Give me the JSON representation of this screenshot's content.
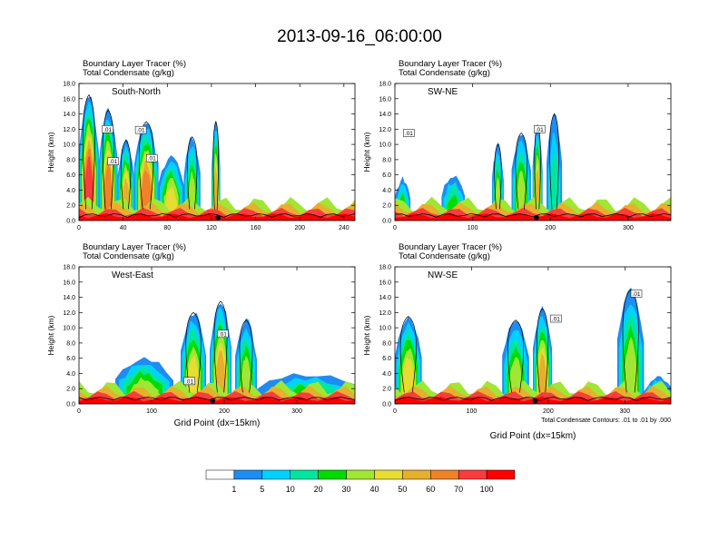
{
  "title": "2013-09-16_06:00:00",
  "fill_label": "Boundary Layer Tracer   (%)",
  "contour_label": "Total Condensate   (g/kg)",
  "ylabel": "Height (km)",
  "xlabel": "Grid Point (dx=15km)",
  "contour_note": "Total Condensate Contours: .01 to .01 by .000",
  "colors": {
    "palette": [
      "#ffffff",
      "#1e8cf0",
      "#00d2ff",
      "#00e6a0",
      "#00dc00",
      "#a0e632",
      "#e6dc32",
      "#e6af2d",
      "#f08228",
      "#fa3c3c",
      "#ff0000"
    ],
    "contour": "#000000",
    "marker": "#000000"
  },
  "colorbar": {
    "labels": [
      "1",
      "5",
      "10",
      "20",
      "30",
      "40",
      "50",
      "60",
      "70",
      "100"
    ]
  },
  "chart_data": [
    {
      "type": "heatmap",
      "panel_label": "South-North",
      "xlim": [
        0,
        250
      ],
      "ylim": [
        0,
        18
      ],
      "x_ticks": [
        "0",
        "40",
        "80",
        "120",
        "160",
        "200",
        "240"
      ],
      "y_ticks": [
        "0.0",
        "2.0",
        "4.0",
        "6.0",
        "8.0",
        "10.0",
        "12.0",
        "14.0",
        "16.0",
        "18.0"
      ],
      "contour_labels": [
        {
          "text": ".01",
          "x": 26,
          "y": 12.0
        },
        {
          "text": ".01",
          "x": 56,
          "y": 11.9
        },
        {
          "text": ".01",
          "x": 31,
          "y": 7.8
        },
        {
          "text": ".01",
          "x": 66,
          "y": 8.2
        }
      ],
      "plumes": [
        {
          "x0": 0,
          "x1": 18,
          "top": 16.5,
          "v": 9
        },
        {
          "x0": 18,
          "x1": 35,
          "top": 14.5,
          "v": 8
        },
        {
          "x0": 35,
          "x1": 50,
          "top": 10.5,
          "v": 7
        },
        {
          "x0": 50,
          "x1": 72,
          "top": 13.0,
          "v": 8
        },
        {
          "x0": 72,
          "x1": 95,
          "top": 8.5,
          "v": 6
        },
        {
          "x0": 95,
          "x1": 110,
          "top": 11.0,
          "v": 5
        },
        {
          "x0": 120,
          "x1": 128,
          "top": 13.0,
          "v": 7
        }
      ],
      "marker_x": 126
    },
    {
      "type": "heatmap",
      "panel_label": "SW-NE",
      "xlim": [
        0,
        355
      ],
      "ylim": [
        0,
        18
      ],
      "x_ticks": [
        "0",
        "100",
        "200",
        "300"
      ],
      "y_ticks": [
        "0.0",
        "2.0",
        "4.0",
        "6.0",
        "8.0",
        "10.0",
        "12.0",
        "14.0",
        "16.0",
        "18.0"
      ],
      "contour_labels": [
        {
          "text": ".01",
          "x": 18,
          "y": 11.5
        },
        {
          "text": ".01",
          "x": 186,
          "y": 12.0
        }
      ],
      "plumes": [
        {
          "x0": 0,
          "x1": 20,
          "top": 5.5,
          "v": 4
        },
        {
          "x0": 60,
          "x1": 90,
          "top": 6.0,
          "v": 4
        },
        {
          "x0": 125,
          "x1": 140,
          "top": 10.0,
          "v": 5
        },
        {
          "x0": 150,
          "x1": 175,
          "top": 11.5,
          "v": 5
        },
        {
          "x0": 177,
          "x1": 190,
          "top": 12.5,
          "v": 7
        },
        {
          "x0": 195,
          "x1": 215,
          "top": 14.0,
          "v": 3
        }
      ],
      "marker_x": 182
    },
    {
      "type": "heatmap",
      "panel_label": "West-East",
      "xlim": [
        0,
        380
      ],
      "ylim": [
        0,
        18
      ],
      "x_ticks": [
        "0",
        "100",
        "200",
        "300"
      ],
      "y_ticks": [
        "0.0",
        "2.0",
        "4.0",
        "6.0",
        "8.0",
        "10.0",
        "12.0",
        "14.0",
        "16.0",
        "18.0"
      ],
      "contour_labels": [
        {
          "text": ".01",
          "x": 152,
          "y": 3.0
        },
        {
          "text": ".01",
          "x": 198,
          "y": 9.2
        }
      ],
      "plumes": [
        {
          "x0": 50,
          "x1": 130,
          "top": 6.0,
          "v": 5
        },
        {
          "x0": 140,
          "x1": 175,
          "top": 12.0,
          "v": 6
        },
        {
          "x0": 180,
          "x1": 210,
          "top": 13.5,
          "v": 7
        },
        {
          "x0": 215,
          "x1": 245,
          "top": 11.0,
          "v": 5
        },
        {
          "x0": 245,
          "x1": 380,
          "top": 4.0,
          "v": 4
        }
      ],
      "marker_x": 184
    },
    {
      "type": "heatmap",
      "panel_label": "NW-SE",
      "xlim": [
        0,
        360
      ],
      "ylim": [
        0,
        18
      ],
      "x_ticks": [
        "0",
        "100",
        "200",
        "300"
      ],
      "y_ticks": [
        "0.0",
        "2.0",
        "4.0",
        "6.0",
        "8.0",
        "10.0",
        "12.0",
        "14.0",
        "16.0",
        "18.0"
      ],
      "contour_labels": [
        {
          "text": ".01",
          "x": 210,
          "y": 11.2
        },
        {
          "text": ".01",
          "x": 315,
          "y": 14.5
        }
      ],
      "plumes": [
        {
          "x0": 0,
          "x1": 35,
          "top": 11.5,
          "v": 6
        },
        {
          "x0": 140,
          "x1": 175,
          "top": 11.0,
          "v": 5
        },
        {
          "x0": 180,
          "x1": 205,
          "top": 12.5,
          "v": 7
        },
        {
          "x0": 290,
          "x1": 325,
          "top": 15.0,
          "v": 5
        },
        {
          "x0": 325,
          "x1": 360,
          "top": 3.5,
          "v": 4
        }
      ],
      "marker_x": 183
    }
  ]
}
